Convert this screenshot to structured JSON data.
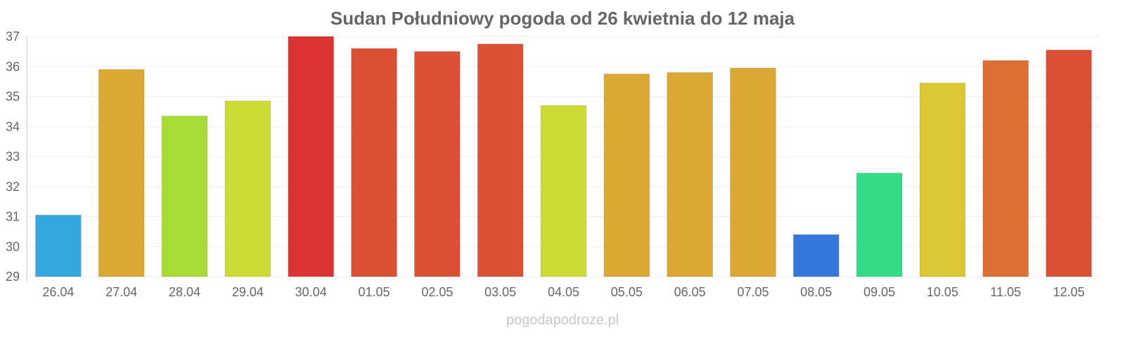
{
  "watermark": "pogodapodroze.pl",
  "chart_data": {
    "type": "bar",
    "title": "Sudan Południowy pogoda od 26 kwietnia do 12 maja",
    "xlabel": "",
    "ylabel": "",
    "ylim": [
      29,
      37
    ],
    "yticks": [
      "29",
      "30",
      "31",
      "32",
      "33",
      "34",
      "35",
      "36",
      "37"
    ],
    "grid": true,
    "legend": "none",
    "categories": [
      "26.04",
      "27.04",
      "28.04",
      "29.04",
      "30.04",
      "01.05",
      "02.05",
      "03.05",
      "04.05",
      "05.05",
      "06.05",
      "07.05",
      "08.05",
      "09.05",
      "10.05",
      "11.05",
      "12.05"
    ],
    "values": [
      31.05,
      35.9,
      34.35,
      34.85,
      37.0,
      36.6,
      36.5,
      36.75,
      34.7,
      35.75,
      35.8,
      35.95,
      30.4,
      32.45,
      35.45,
      36.2,
      36.55
    ],
    "colors": [
      "#34a8dc",
      "#dca834",
      "#a8dc34",
      "#cddc34",
      "#dc3434",
      "#dc5034",
      "#dc5034",
      "#dc5034",
      "#cddc34",
      "#dca834",
      "#dca834",
      "#dca834",
      "#3478dc",
      "#34dc88",
      "#dcc834",
      "#dc7034",
      "#dc5034"
    ]
  }
}
